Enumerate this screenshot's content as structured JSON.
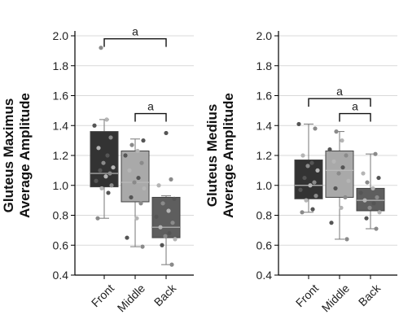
{
  "colors": {
    "front": "#333333",
    "middle": "#a9a9a9",
    "back": "#5e5e5e",
    "grid": "#d9d9d9",
    "axis": "#000000"
  },
  "chart_data": [
    {
      "type": "box",
      "ylabel": [
        "Gluteus Maximus",
        "Average Amplitude"
      ],
      "ylim": [
        0.4,
        2.0
      ],
      "yticks": [
        "0.4",
        "0.6",
        "0.8",
        "1.0",
        "1.2",
        "1.4",
        "1.6",
        "1.8",
        "2.0"
      ],
      "grid": true,
      "categories": [
        "Front",
        "Middle",
        "Back"
      ],
      "boxes": [
        {
          "category": "Front",
          "min": 0.78,
          "q1": 0.99,
          "median": 1.08,
          "q3": 1.36,
          "max": 1.44,
          "points": [
            0.78,
            0.95,
            0.98,
            1.0,
            1.03,
            1.06,
            1.08,
            1.1,
            1.12,
            1.15,
            1.2,
            1.25,
            1.32,
            1.4,
            1.44,
            1.92
          ]
        },
        {
          "category": "Middle",
          "min": 0.59,
          "q1": 0.89,
          "median": 1.02,
          "q3": 1.23,
          "max": 1.31,
          "points": [
            0.59,
            0.65,
            0.78,
            0.88,
            0.92,
            0.98,
            1.02,
            1.05,
            1.1,
            1.15,
            1.2,
            1.23,
            1.27,
            1.3
          ]
        },
        {
          "category": "Back",
          "min": 0.47,
          "q1": 0.65,
          "median": 0.72,
          "q3": 0.92,
          "max": 0.93,
          "points": [
            0.47,
            0.6,
            0.64,
            0.66,
            0.68,
            0.72,
            0.75,
            0.79,
            0.83,
            0.88,
            0.91,
            1.0,
            1.04,
            1.35
          ]
        }
      ],
      "significance": [
        {
          "from": "Front",
          "to": "Back",
          "y": 1.98,
          "label": "a"
        },
        {
          "from": "Middle",
          "to": "Back",
          "y": 1.48,
          "label": "a"
        }
      ]
    },
    {
      "type": "box",
      "ylabel": [
        "Gluteus Medius",
        "Average Amplitude"
      ],
      "ylim": [
        0.4,
        2.0
      ],
      "yticks": [
        "0.4",
        "0.6",
        "0.8",
        "1.0",
        "1.2",
        "1.4",
        "1.6",
        "1.8",
        "2.0"
      ],
      "grid": true,
      "categories": [
        "Front",
        "Middle",
        "Back"
      ],
      "boxes": [
        {
          "category": "Front",
          "min": 0.82,
          "q1": 0.91,
          "median": 1.0,
          "q3": 1.17,
          "max": 1.41,
          "points": [
            0.82,
            0.84,
            0.9,
            0.93,
            0.97,
            1.0,
            1.02,
            1.05,
            1.1,
            1.13,
            1.15,
            1.2,
            1.38,
            1.41
          ]
        },
        {
          "category": "Middle",
          "min": 0.64,
          "q1": 0.92,
          "median": 1.1,
          "q3": 1.23,
          "max": 1.36,
          "points": [
            0.64,
            0.75,
            0.85,
            0.92,
            0.98,
            1.03,
            1.08,
            1.12,
            1.16,
            1.2,
            1.24,
            1.3,
            1.36
          ]
        },
        {
          "category": "Back",
          "min": 0.71,
          "q1": 0.83,
          "median": 0.9,
          "q3": 0.98,
          "max": 1.21,
          "points": [
            0.71,
            0.78,
            0.82,
            0.85,
            0.88,
            0.9,
            0.92,
            0.95,
            0.98,
            1.02,
            1.05,
            1.08,
            1.21
          ]
        }
      ],
      "significance": [
        {
          "from": "Front",
          "to": "Back",
          "y": 1.58,
          "label": "a"
        },
        {
          "from": "Middle",
          "to": "Back",
          "y": 1.48,
          "label": "a"
        }
      ]
    }
  ]
}
